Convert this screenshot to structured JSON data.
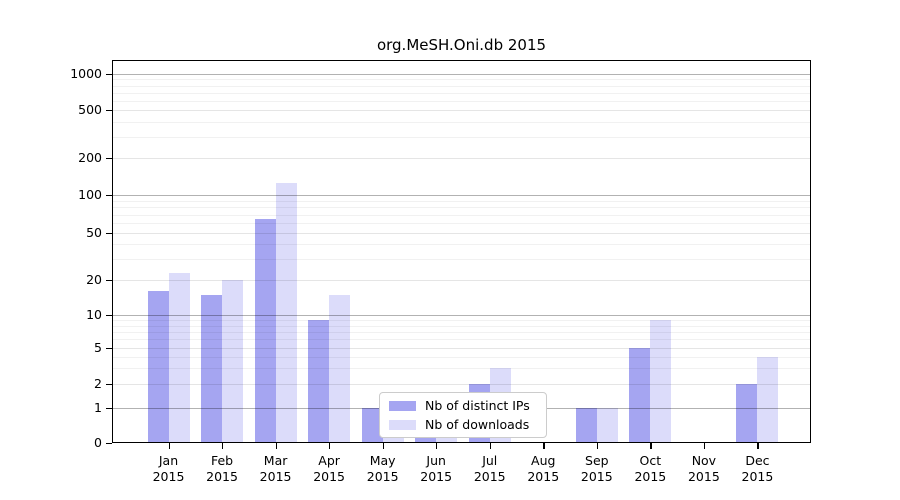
{
  "chart_data": {
    "type": "bar",
    "title": "org.MeSH.Oni.db 2015",
    "categories": [
      "Jan",
      "Feb",
      "Mar",
      "Apr",
      "May",
      "Jun",
      "Jul",
      "Aug",
      "Sep",
      "Oct",
      "Nov",
      "Dec"
    ],
    "year_label": "2015",
    "series": [
      {
        "name": "Nb of distinct IPs",
        "color": "#a5a5f1",
        "values": [
          16,
          15,
          65,
          9,
          1,
          1,
          2,
          0,
          1,
          5,
          0,
          2
        ]
      },
      {
        "name": "Nb of downloads",
        "color": "#dcdcfa",
        "values": [
          23,
          20,
          125,
          15,
          1,
          1,
          3,
          0,
          1,
          9,
          0,
          4
        ]
      }
    ],
    "yscale": "log",
    "yticks": [
      0,
      1,
      2,
      5,
      10,
      20,
      50,
      100,
      200,
      500,
      1000
    ],
    "ylim": [
      0,
      1000
    ],
    "grid": true,
    "legend_position": "bottom-center"
  }
}
